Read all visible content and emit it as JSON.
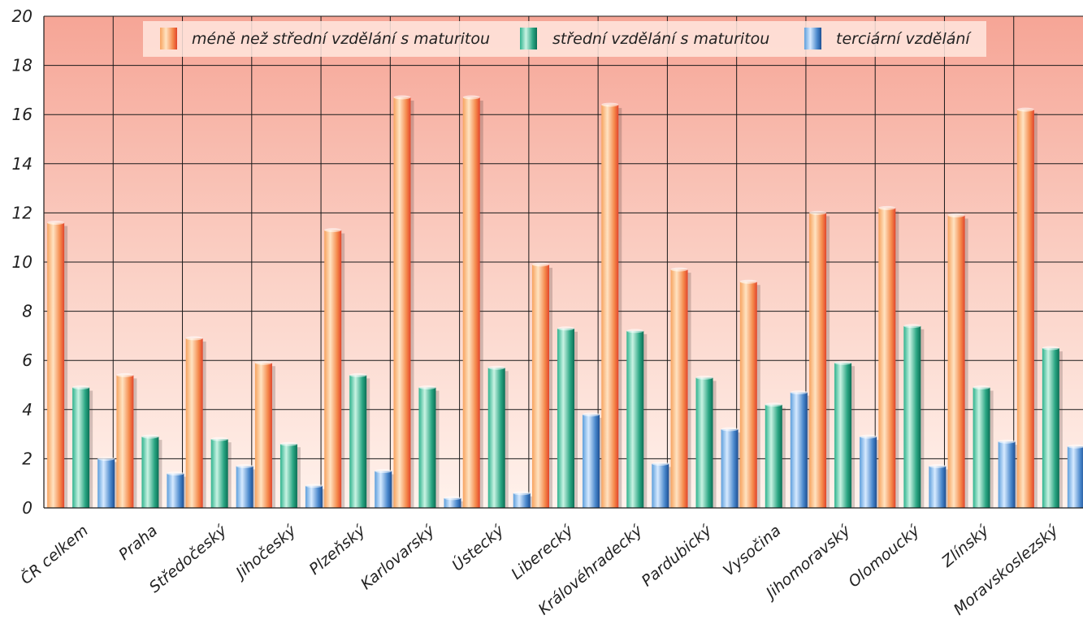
{
  "chart_data": {
    "type": "bar",
    "title": "",
    "xlabel": "",
    "ylabel": "",
    "ylim": [
      0,
      20
    ],
    "yticks": [
      "0",
      "2",
      "4",
      "6",
      "8",
      "10",
      "12",
      "14",
      "16",
      "18",
      "20"
    ],
    "grid": true,
    "legend_position": "top",
    "categories": [
      "ČR celkem",
      "Praha",
      "Středočeský",
      "Jihočeský",
      "Plzeňský",
      "Karlovarský",
      "Ústecký",
      "Liberecký",
      "Královéhradecký",
      "Pardubický",
      "Vysočina",
      "Jihomoravský",
      "Olomoucký",
      "Zlínský",
      "Moravskoslezský"
    ],
    "series": [
      {
        "name": "méně než střední vzdělání s maturitou",
        "color": "#f26a3a",
        "values": [
          11.6,
          5.4,
          6.9,
          5.9,
          11.3,
          16.7,
          16.7,
          9.9,
          16.4,
          9.7,
          9.2,
          12.0,
          12.2,
          11.9,
          16.2
        ]
      },
      {
        "name": "střední vzdělání s maturitou",
        "color": "#16a080",
        "values": [
          4.9,
          2.9,
          2.8,
          2.6,
          5.4,
          4.9,
          5.7,
          7.3,
          7.2,
          5.3,
          4.2,
          5.9,
          7.4,
          4.9,
          6.5
        ]
      },
      {
        "name": "terciární vzdělání",
        "color": "#2f6fb6",
        "values": [
          2.0,
          1.4,
          1.7,
          0.9,
          1.5,
          0.4,
          0.6,
          3.8,
          1.8,
          3.2,
          4.7,
          2.9,
          1.7,
          2.7,
          2.5
        ]
      }
    ]
  }
}
